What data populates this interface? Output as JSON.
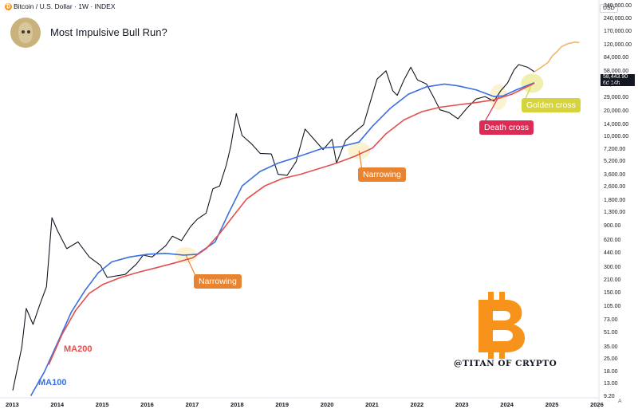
{
  "header": {
    "symbol": "Bitcoin / U.S. Dollar · 1W · INDEX",
    "title": "Most Impulsive Bull Run?",
    "currency": "USD",
    "last_price": "58,443.90",
    "countdown": "6d 14h"
  },
  "annotations": {
    "narrowing_1": "Narrowing",
    "narrowing_2": "Narrowing",
    "death_cross": "Death cross",
    "golden_cross": "Golden cross",
    "ma100_label": "MA100",
    "ma200_label": "MA200",
    "watermark": "@TITAN OF CRYPTO"
  },
  "colors": {
    "candles": "#131722",
    "ma100": "#3a6fe0",
    "ma200": "#e34f4f",
    "projection": "#f4b46a",
    "highlight": "#f5e39a",
    "btc_orange": "#f7931a"
  },
  "chart_data": {
    "type": "line",
    "scale": "log",
    "ylim": [
      9.2,
      340000
    ],
    "xlim": [
      2013.0,
      2026.3
    ],
    "y_ticks": [
      "340,000.00",
      "240,000.00",
      "170,000.00",
      "120,000.00",
      "84,000.00",
      "58,000.00",
      "41,000.00",
      "29,000.00",
      "20,000.00",
      "14,000.00",
      "10,000.00",
      "7,200.00",
      "5,200.00",
      "3,600.00",
      "2,600.00",
      "1,800.00",
      "1,300.00",
      "900.00",
      "620.00",
      "440.00",
      "300.00",
      "210.00",
      "150.00",
      "105.00",
      "73.00",
      "51.00",
      "35.00",
      "25.00",
      "18.00",
      "13.00",
      "9.20"
    ],
    "y_tick_values": [
      340000,
      240000,
      170000,
      120000,
      84000,
      58000,
      41000,
      29000,
      20000,
      14000,
      10000,
      7200,
      5200,
      3600,
      2600,
      1800,
      1300,
      900,
      620,
      440,
      300,
      210,
      150,
      105,
      73,
      51,
      35,
      25,
      18,
      13,
      9.2
    ],
    "x_ticks": [
      "2013",
      "2014",
      "2015",
      "2016",
      "2017",
      "2018",
      "2019",
      "2020",
      "2021",
      "2022",
      "2023",
      "2024",
      "2025",
      "2026"
    ],
    "x_tick_values": [
      2013,
      2014,
      2015,
      2016,
      2017,
      2018,
      2019,
      2020,
      2021,
      2022,
      2023,
      2024,
      2025,
      2026
    ],
    "series": [
      {
        "name": "MA100",
        "points": [
          [
            2013.4,
            9.5
          ],
          [
            2013.7,
            18
          ],
          [
            2014.0,
            40
          ],
          [
            2014.3,
            90
          ],
          [
            2014.6,
            160
          ],
          [
            2014.9,
            260
          ],
          [
            2015.2,
            350
          ],
          [
            2015.6,
            400
          ],
          [
            2016.0,
            430
          ],
          [
            2016.4,
            440
          ],
          [
            2016.8,
            420
          ],
          [
            2017.1,
            430
          ],
          [
            2017.5,
            600
          ],
          [
            2017.8,
            1300
          ],
          [
            2018.1,
            2700
          ],
          [
            2018.5,
            4000
          ],
          [
            2018.9,
            5000
          ],
          [
            2019.2,
            5600
          ],
          [
            2019.6,
            6600
          ],
          [
            2019.9,
            7500
          ],
          [
            2020.3,
            7800
          ],
          [
            2020.7,
            8800
          ],
          [
            2021.0,
            13500
          ],
          [
            2021.4,
            22000
          ],
          [
            2021.8,
            32000
          ],
          [
            2022.2,
            39000
          ],
          [
            2022.6,
            42000
          ],
          [
            2022.9,
            40000
          ],
          [
            2023.3,
            36000
          ],
          [
            2023.7,
            30000
          ],
          [
            2023.9,
            30500
          ],
          [
            2024.2,
            36000
          ],
          [
            2024.6,
            43500
          ]
        ]
      },
      {
        "name": "MA200",
        "points": [
          [
            2013.8,
            22
          ],
          [
            2014.1,
            50
          ],
          [
            2014.4,
            95
          ],
          [
            2014.7,
            150
          ],
          [
            2015.0,
            190
          ],
          [
            2015.4,
            230
          ],
          [
            2015.8,
            265
          ],
          [
            2016.2,
            300
          ],
          [
            2016.6,
            340
          ],
          [
            2017.0,
            390
          ],
          [
            2017.3,
            500
          ],
          [
            2017.6,
            750
          ],
          [
            2017.9,
            1200
          ],
          [
            2018.2,
            1900
          ],
          [
            2018.6,
            2700
          ],
          [
            2019.0,
            3300
          ],
          [
            2019.4,
            3700
          ],
          [
            2019.8,
            4300
          ],
          [
            2020.2,
            5000
          ],
          [
            2020.6,
            6000
          ],
          [
            2021.0,
            7500
          ],
          [
            2021.3,
            11000
          ],
          [
            2021.7,
            16000
          ],
          [
            2022.1,
            20000
          ],
          [
            2022.5,
            22500
          ],
          [
            2022.9,
            24000
          ],
          [
            2023.3,
            25500
          ],
          [
            2023.7,
            27500
          ],
          [
            2024.1,
            32000
          ],
          [
            2024.6,
            43000
          ]
        ]
      },
      {
        "name": "BTC",
        "points": [
          [
            2013.0,
            11
          ],
          [
            2013.2,
            35
          ],
          [
            2013.3,
            100
          ],
          [
            2013.45,
            65
          ],
          [
            2013.6,
            110
          ],
          [
            2013.75,
            180
          ],
          [
            2013.87,
            1150
          ],
          [
            2014.0,
            800
          ],
          [
            2014.2,
            500
          ],
          [
            2014.45,
            600
          ],
          [
            2014.7,
            400
          ],
          [
            2014.95,
            320
          ],
          [
            2015.1,
            230
          ],
          [
            2015.3,
            240
          ],
          [
            2015.5,
            250
          ],
          [
            2015.75,
            330
          ],
          [
            2015.9,
            420
          ],
          [
            2016.1,
            400
          ],
          [
            2016.4,
            540
          ],
          [
            2016.55,
            700
          ],
          [
            2016.75,
            620
          ],
          [
            2016.95,
            900
          ],
          [
            2017.1,
            1100
          ],
          [
            2017.3,
            1300
          ],
          [
            2017.45,
            2500
          ],
          [
            2017.6,
            2700
          ],
          [
            2017.75,
            4800
          ],
          [
            2017.85,
            8000
          ],
          [
            2017.97,
            19000
          ],
          [
            2018.1,
            10500
          ],
          [
            2018.3,
            8500
          ],
          [
            2018.5,
            6500
          ],
          [
            2018.75,
            6400
          ],
          [
            2018.9,
            3700
          ],
          [
            2019.1,
            3600
          ],
          [
            2019.3,
            5200
          ],
          [
            2019.5,
            12500
          ],
          [
            2019.7,
            9500
          ],
          [
            2019.9,
            7200
          ],
          [
            2020.1,
            9500
          ],
          [
            2020.2,
            5000
          ],
          [
            2020.4,
            9200
          ],
          [
            2020.6,
            11500
          ],
          [
            2020.8,
            14000
          ],
          [
            2020.95,
            26000
          ],
          [
            2021.1,
            48000
          ],
          [
            2021.3,
            60000
          ],
          [
            2021.45,
            35000
          ],
          [
            2021.55,
            31000
          ],
          [
            2021.7,
            47000
          ],
          [
            2021.85,
            66000
          ],
          [
            2022.0,
            47000
          ],
          [
            2022.2,
            42000
          ],
          [
            2022.35,
            30000
          ],
          [
            2022.5,
            21000
          ],
          [
            2022.7,
            19500
          ],
          [
            2022.9,
            16500
          ],
          [
            2023.1,
            22000
          ],
          [
            2023.3,
            28000
          ],
          [
            2023.5,
            30000
          ],
          [
            2023.7,
            26500
          ],
          [
            2023.85,
            35000
          ],
          [
            2024.0,
            43000
          ],
          [
            2024.15,
            62000
          ],
          [
            2024.25,
            71000
          ],
          [
            2024.45,
            66000
          ],
          [
            2024.6,
            58443.9
          ]
        ]
      },
      {
        "name": "Projection",
        "points": [
          [
            2024.6,
            58443.9
          ],
          [
            2024.75,
            66000
          ],
          [
            2024.9,
            75000
          ],
          [
            2025.0,
            90000
          ],
          [
            2025.1,
            100000
          ],
          [
            2025.2,
            115000
          ],
          [
            2025.35,
            125000
          ],
          [
            2025.5,
            130000
          ],
          [
            2025.6,
            128000
          ]
        ]
      }
    ]
  }
}
